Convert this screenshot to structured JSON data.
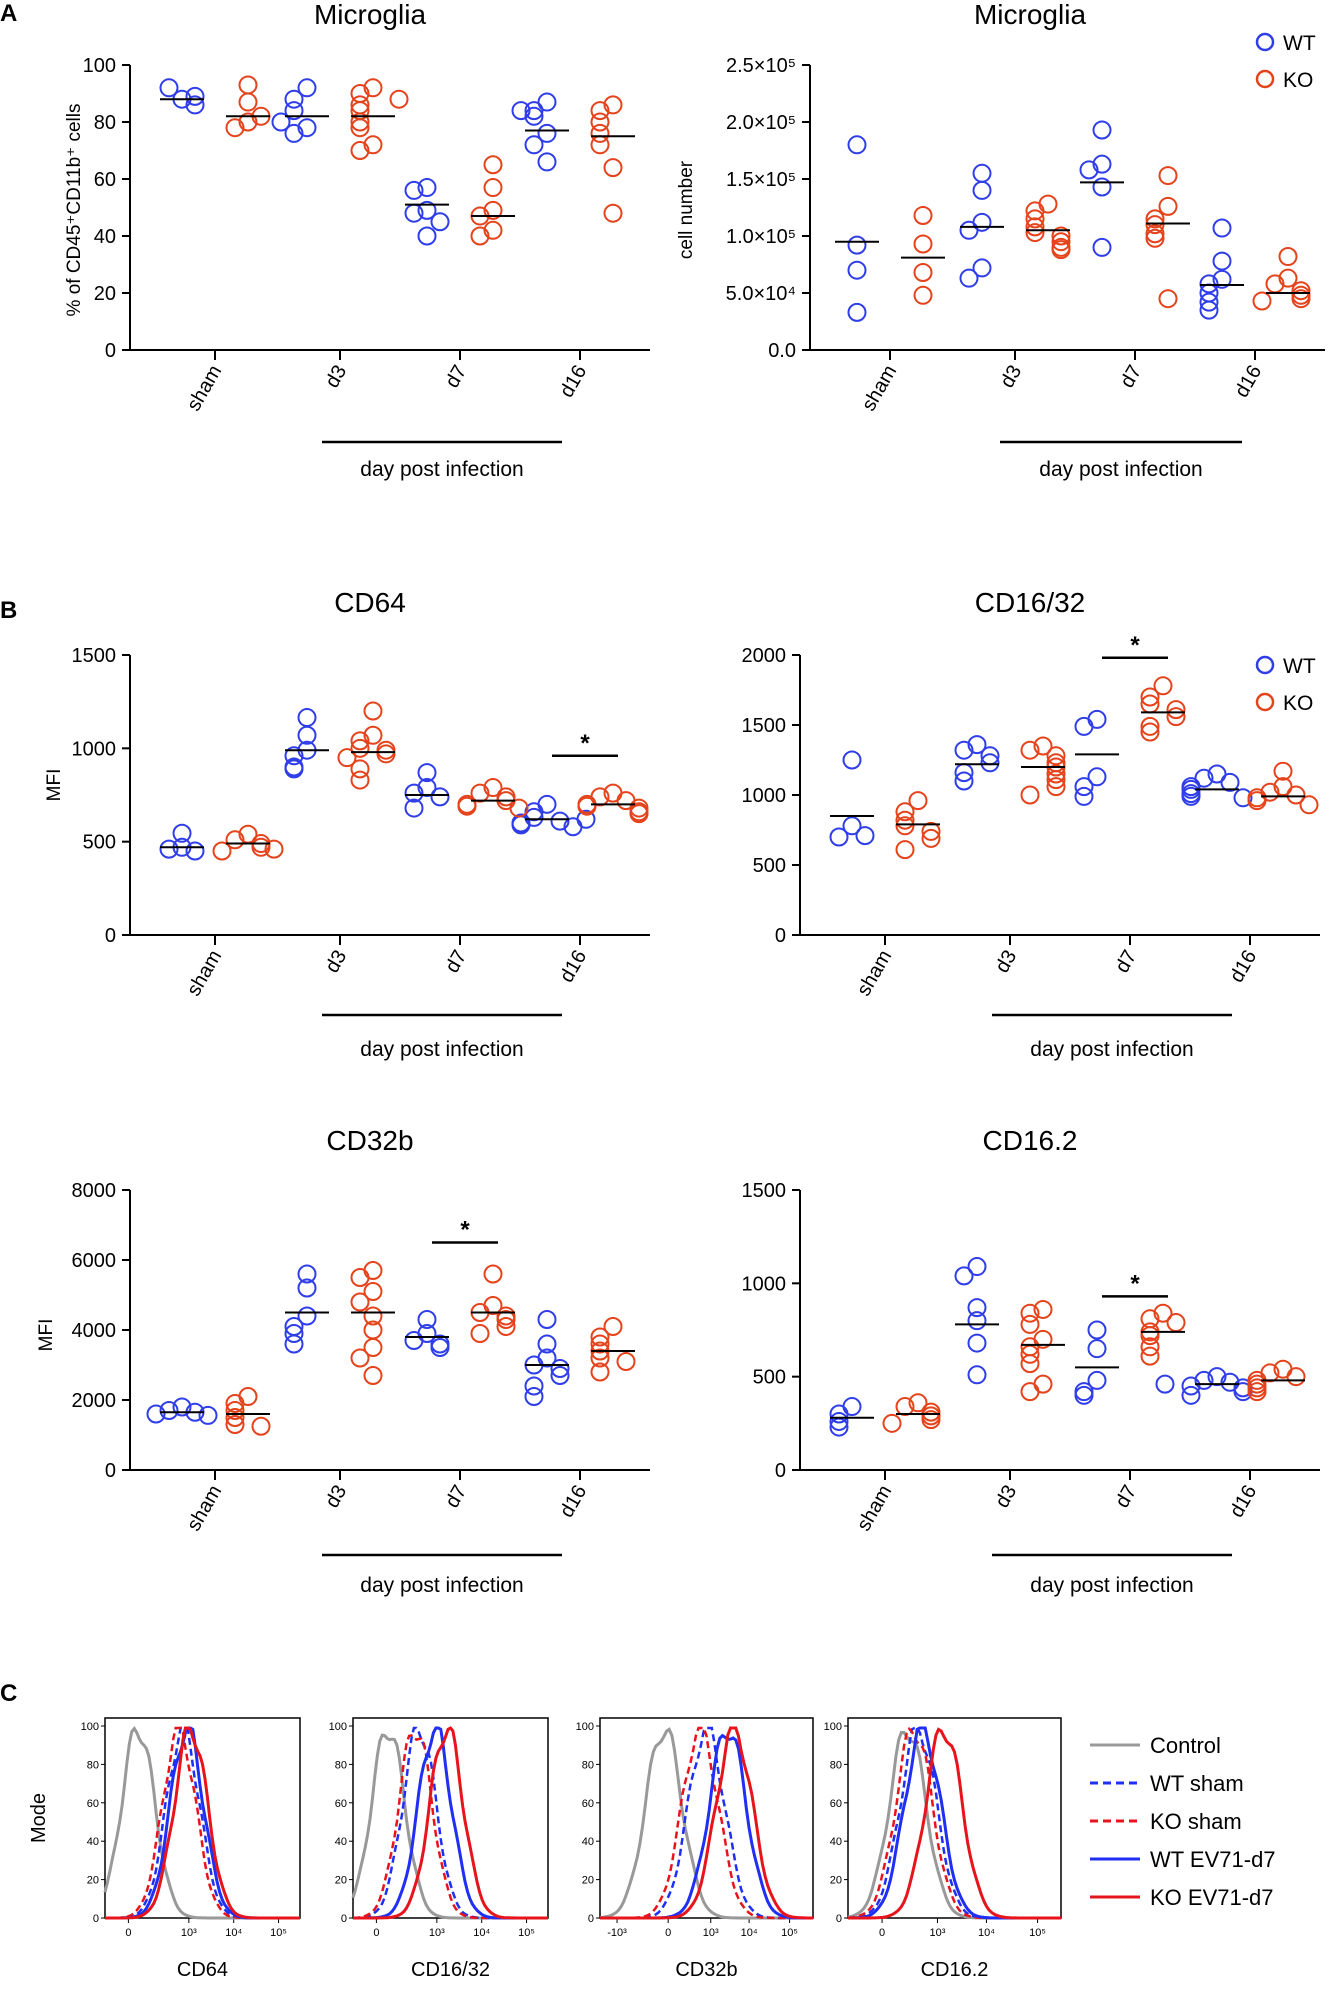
{
  "panel_labels": {
    "a": "A",
    "b": "B",
    "c": "C"
  },
  "legend": {
    "wt": "WT",
    "ko": "KO"
  },
  "colors": {
    "wt": "#2f3ee8",
    "ko": "#e5431b",
    "control": "#999999",
    "wt_line": "#1f2ff5",
    "ko_line": "#e8141b"
  },
  "chart_data": [
    {
      "id": "a1",
      "type": "scatter",
      "title": "Microglia",
      "ylabel": "% of CD45⁺CD11b⁺ cells",
      "categories": [
        "sham",
        "d3",
        "d7",
        "d16"
      ],
      "xlabel": "day post infection",
      "ylim": [
        0,
        100
      ],
      "yticks": [
        0,
        20,
        40,
        60,
        80,
        100
      ],
      "ytick_labels": [
        "0",
        "20",
        "40",
        "60",
        "80",
        "100"
      ],
      "series": [
        {
          "name": "WT",
          "groups": [
            [
              88,
              92,
              89,
              86
            ],
            [
              92,
              88,
              84,
              78,
              76,
              80
            ],
            [
              57,
              56,
              49,
              48,
              45,
              40
            ],
            [
              87,
              84,
              82,
              76,
              72,
              66,
              84
            ]
          ],
          "medians": [
            88,
            82,
            51,
            77
          ]
        },
        {
          "name": "KO",
          "groups": [
            [
              93,
              87,
              80,
              78,
              82
            ],
            [
              92,
              90,
              86,
              84,
              80,
              78,
              72,
              70,
              88
            ],
            [
              65,
              57,
              49,
              47,
              42,
              40
            ],
            [
              86,
              84,
              80,
              76,
              72,
              64,
              48
            ]
          ],
          "medians": [
            82,
            82,
            47,
            75
          ]
        }
      ],
      "significance": []
    },
    {
      "id": "a2",
      "type": "scatter",
      "title": "Microglia",
      "ylabel": "cell number",
      "categories": [
        "sham",
        "d3",
        "d7",
        "d16"
      ],
      "xlabel": "day post infection",
      "ylim": [
        0,
        250000
      ],
      "yticks": [
        0,
        50000,
        100000,
        150000,
        200000,
        250000
      ],
      "ytick_labels": [
        "0.0",
        "5.0×10⁴",
        "1.0×10⁵",
        "1.5×10⁵",
        "2.0×10⁵",
        "2.5×10⁵"
      ],
      "series": [
        {
          "name": "WT",
          "groups": [
            [
              180000,
              92000,
              70000,
              33000
            ],
            [
              155000,
              140000,
              112000,
              105000,
              72000,
              63000
            ],
            [
              193000,
              163000,
              158000,
              143000,
              90000
            ],
            [
              107000,
              78000,
              62000,
              58000,
              50000,
              42000,
              35000
            ]
          ],
          "medians": [
            95000,
            108000,
            147000,
            57000
          ]
        },
        {
          "name": "KO",
          "groups": [
            [
              118000,
              93000,
              68000,
              48000
            ],
            [
              128000,
              122000,
              115000,
              108000,
              103000,
              100000,
              95000,
              90000,
              88000
            ],
            [
              153000,
              126000,
              115000,
              110000,
              102000,
              98000,
              45000
            ],
            [
              82000,
              63000,
              58000,
              52000,
              48000,
              45000,
              43000
            ]
          ],
          "medians": [
            81000,
            105000,
            111000,
            50000
          ]
        }
      ],
      "significance": []
    },
    {
      "id": "b1",
      "type": "scatter",
      "title": "CD64",
      "ylabel": "MFI",
      "categories": [
        "sham",
        "d3",
        "d7",
        "d16"
      ],
      "xlabel": "day post infection",
      "ylim": [
        0,
        1500
      ],
      "yticks": [
        0,
        500,
        1000,
        1500
      ],
      "ytick_labels": [
        "0",
        "500",
        "1000",
        "1500"
      ],
      "series": [
        {
          "name": "WT",
          "groups": [
            [
              545,
              470,
              460,
              450
            ],
            [
              1165,
              1070,
              990,
              960,
              900,
              890
            ],
            [
              870,
              790,
              760,
              740,
              680
            ],
            [
              700,
              660,
              630,
              610,
              600,
              590,
              580,
              620
            ]
          ],
          "medians": [
            470,
            990,
            750,
            620
          ]
        },
        {
          "name": "KO",
          "groups": [
            [
              540,
              510,
              490,
              470,
              450,
              460
            ],
            [
              1200,
              1070,
              1040,
              1000,
              990,
              970,
              950,
              890,
              830
            ],
            [
              790,
              760,
              740,
              720,
              700,
              690,
              680
            ],
            [
              760,
              740,
              720,
              700,
              690,
              680,
              660,
              650
            ]
          ],
          "medians": [
            490,
            980,
            720,
            700
          ]
        }
      ],
      "significance": [
        {
          "category": "d16",
          "label": "*",
          "level": 960
        }
      ]
    },
    {
      "id": "b2",
      "type": "scatter",
      "title": "CD16/32",
      "ylabel": "",
      "categories": [
        "sham",
        "d3",
        "d7",
        "d16"
      ],
      "xlabel": "day post infection",
      "ylim": [
        0,
        2000
      ],
      "yticks": [
        0,
        500,
        1000,
        1500,
        2000
      ],
      "ytick_labels": [
        "0",
        "500",
        "1000",
        "1500",
        "2000"
      ],
      "series": [
        {
          "name": "WT",
          "groups": [
            [
              1250,
              780,
              700,
              710
            ],
            [
              1360,
              1320,
              1280,
              1230,
              1160,
              1100
            ],
            [
              1540,
              1490,
              1130,
              1060,
              990
            ],
            [
              1150,
              1120,
              1090,
              1060,
              1040,
              1010,
              990,
              980
            ]
          ],
          "medians": [
            850,
            1220,
            1290,
            1040
          ]
        },
        {
          "name": "KO",
          "groups": [
            [
              960,
              880,
              820,
              780,
              740,
              690,
              610
            ],
            [
              1350,
              1320,
              1280,
              1230,
              1200,
              1150,
              1110,
              1060,
              1000
            ],
            [
              1780,
              1700,
              1650,
              1610,
              1560,
              1490,
              1450
            ],
            [
              1170,
              1060,
              1020,
              1000,
              980,
              960,
              930
            ]
          ],
          "medians": [
            790,
            1200,
            1590,
            990
          ]
        }
      ],
      "significance": [
        {
          "category": "d7",
          "label": "*",
          "level": 1980
        }
      ]
    },
    {
      "id": "b3",
      "type": "scatter",
      "title": "CD32b",
      "ylabel": "MFI",
      "categories": [
        "sham",
        "d3",
        "d7",
        "d16"
      ],
      "xlabel": "day post infection",
      "ylim": [
        0,
        8000
      ],
      "yticks": [
        0,
        2000,
        4000,
        6000,
        8000
      ],
      "ytick_labels": [
        "0",
        "2000",
        "4000",
        "6000",
        "8000"
      ],
      "series": [
        {
          "name": "WT",
          "groups": [
            [
              1800,
              1700,
              1650,
              1600,
              1560
            ],
            [
              5600,
              5200,
              4400,
              4100,
              3900,
              3600
            ],
            [
              4300,
              3900,
              3700,
              3600,
              3500
            ],
            [
              4300,
              3600,
              3200,
              3000,
              2900,
              2700,
              2400,
              2100
            ]
          ],
          "medians": [
            1650,
            4500,
            3800,
            3000
          ]
        },
        {
          "name": "KO",
          "groups": [
            [
              2100,
              1900,
              1700,
              1500,
              1300,
              1250
            ],
            [
              5700,
              5500,
              5100,
              4800,
              4400,
              4000,
              3500,
              3200,
              2700
            ],
            [
              5600,
              4700,
              4500,
              4400,
              4300,
              4100,
              3900
            ],
            [
              4100,
              3800,
              3600,
              3400,
              3200,
              3100,
              2800
            ]
          ],
          "medians": [
            1600,
            4500,
            4500,
            3400
          ]
        }
      ],
      "significance": [
        {
          "category": "d7",
          "label": "*",
          "level": 6500
        }
      ]
    },
    {
      "id": "b4",
      "type": "scatter",
      "title": "CD16.2",
      "ylabel": "",
      "categories": [
        "sham",
        "d3",
        "d7",
        "d16"
      ],
      "xlabel": "day post infection",
      "ylim": [
        0,
        1500
      ],
      "yticks": [
        0,
        500,
        1000,
        1500
      ],
      "ytick_labels": [
        "0",
        "500",
        "1000",
        "1500"
      ],
      "series": [
        {
          "name": "WT",
          "groups": [
            [
              340,
              300,
              260,
              230
            ],
            [
              1090,
              1040,
              870,
              800,
              680,
              510
            ],
            [
              750,
              650,
              480,
              420,
              400
            ],
            [
              500,
              480,
              470,
              450,
              440,
              420,
              400,
              460
            ]
          ],
          "medians": [
            280,
            780,
            550,
            460
          ]
        },
        {
          "name": "KO",
          "groups": [
            [
              360,
              340,
              310,
              290,
              270,
              250
            ],
            [
              860,
              840,
              780,
              700,
              660,
              620,
              570,
              460,
              420
            ],
            [
              840,
              810,
              790,
              740,
              720,
              660,
              610
            ],
            [
              540,
              520,
              500,
              480,
              460,
              440,
              420
            ]
          ],
          "medians": [
            300,
            670,
            740,
            480
          ]
        }
      ],
      "significance": [
        {
          "category": "d7",
          "label": "*",
          "level": 930
        }
      ]
    },
    {
      "id": "c",
      "type": "line",
      "ylabel": "Mode",
      "yticks": [
        0,
        20,
        40,
        60,
        80,
        100
      ],
      "ytick_labels": [
        "0",
        "20",
        "40",
        "60",
        "80",
        "100"
      ],
      "legend": [
        {
          "name": "Control",
          "style": "solid",
          "color": "control"
        },
        {
          "name": "WT sham",
          "style": "dashed",
          "color": "wt_line"
        },
        {
          "name": "KO sham",
          "style": "dashed",
          "color": "ko_line"
        },
        {
          "name": "WT EV71-d7",
          "style": "solid",
          "color": "wt_line"
        },
        {
          "name": "KO EV71-d7",
          "style": "solid",
          "color": "ko_line"
        }
      ],
      "histograms": [
        {
          "xlabel": "CD64",
          "xtick_labels": [
            "0",
            "10³",
            "10⁴",
            "10⁵"
          ],
          "xtick_pos": [
            0.12,
            0.43,
            0.66,
            0.89
          ],
          "peaks": {
            "Control": 0.17,
            "WT sham": 0.4,
            "KO sham": 0.38,
            "WT EV71-d7": 0.42,
            "KO EV71-d7": 0.44
          }
        },
        {
          "xlabel": "CD16/32",
          "xtick_labels": [
            "0",
            "10³",
            "10⁴",
            "10⁵"
          ],
          "xtick_pos": [
            0.12,
            0.43,
            0.66,
            0.89
          ],
          "peaks": {
            "Control": 0.18,
            "WT sham": 0.34,
            "KO sham": 0.32,
            "WT EV71-d7": 0.42,
            "KO EV71-d7": 0.48
          }
        },
        {
          "xlabel": "CD32b",
          "xtick_labels": [
            "-10³",
            "0",
            "10³",
            "10⁴",
            "10⁵"
          ],
          "xtick_pos": [
            0.08,
            0.32,
            0.52,
            0.7,
            0.89
          ],
          "peaks": {
            "Control": 0.3,
            "WT sham": 0.5,
            "KO sham": 0.47,
            "WT EV71-d7": 0.6,
            "KO EV71-d7": 0.63
          }
        },
        {
          "xlabel": "CD16.2",
          "xtick_labels": [
            "0",
            "10³",
            "10⁴",
            "10⁵"
          ],
          "xtick_pos": [
            0.16,
            0.42,
            0.65,
            0.89
          ],
          "peaks": {
            "Control": 0.28,
            "WT sham": 0.33,
            "KO sham": 0.31,
            "WT EV71-d7": 0.35,
            "KO EV71-d7": 0.45
          }
        }
      ]
    }
  ]
}
